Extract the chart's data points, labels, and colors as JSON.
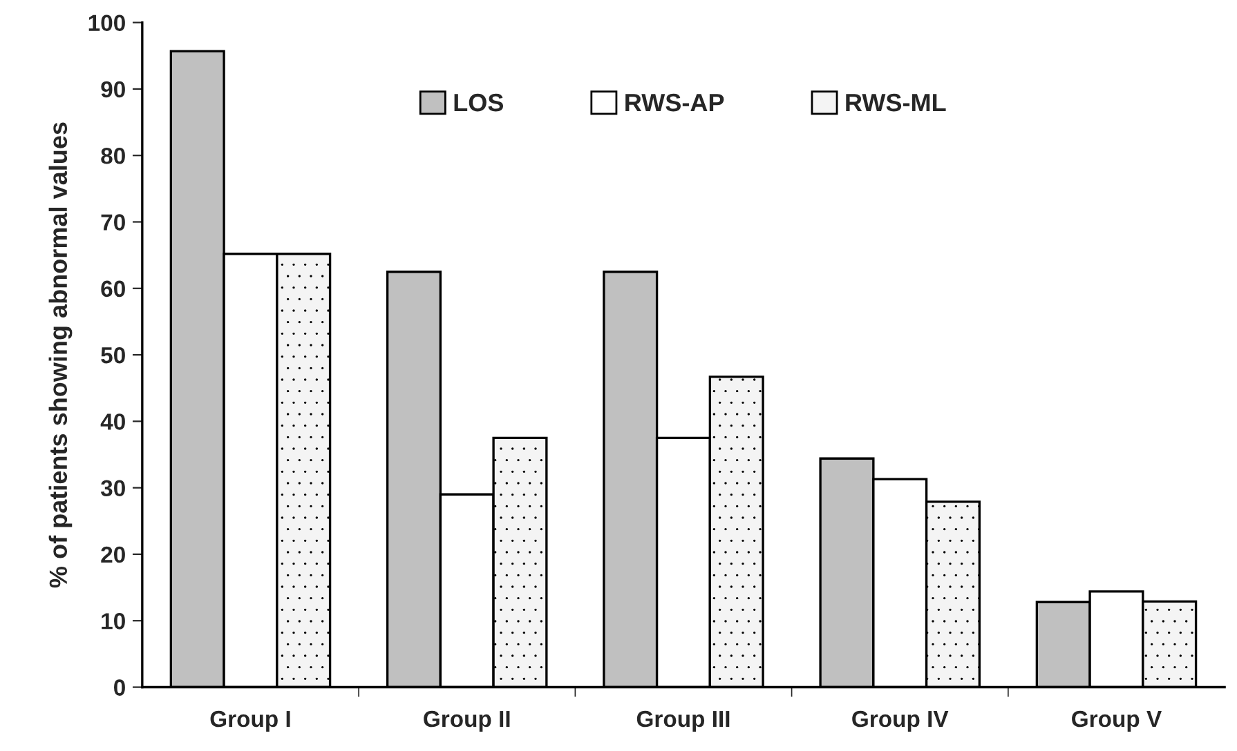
{
  "chart_data": {
    "type": "bar",
    "ylabel": "% of patients showing abnormal values",
    "categories": [
      "Group I",
      "Group II",
      "Group III",
      "Group IV",
      "Group V"
    ],
    "series": [
      {
        "name": "LOS",
        "color": "#c0c0c0",
        "values": [
          95.7,
          62.5,
          62.5,
          34.4,
          12.8
        ]
      },
      {
        "name": "RWS-AP",
        "color": "#ffffff",
        "values": [
          65.2,
          29.0,
          37.5,
          31.3,
          14.4
        ]
      },
      {
        "name": "RWS-ML",
        "color": "#f4f4f4",
        "values": [
          65.2,
          37.5,
          46.7,
          27.9,
          12.9
        ]
      }
    ],
    "ylim": [
      0,
      100
    ],
    "yticks": [
      0,
      10,
      20,
      30,
      40,
      50,
      60,
      70,
      80,
      90,
      100
    ],
    "grid": false,
    "legend": "top"
  }
}
